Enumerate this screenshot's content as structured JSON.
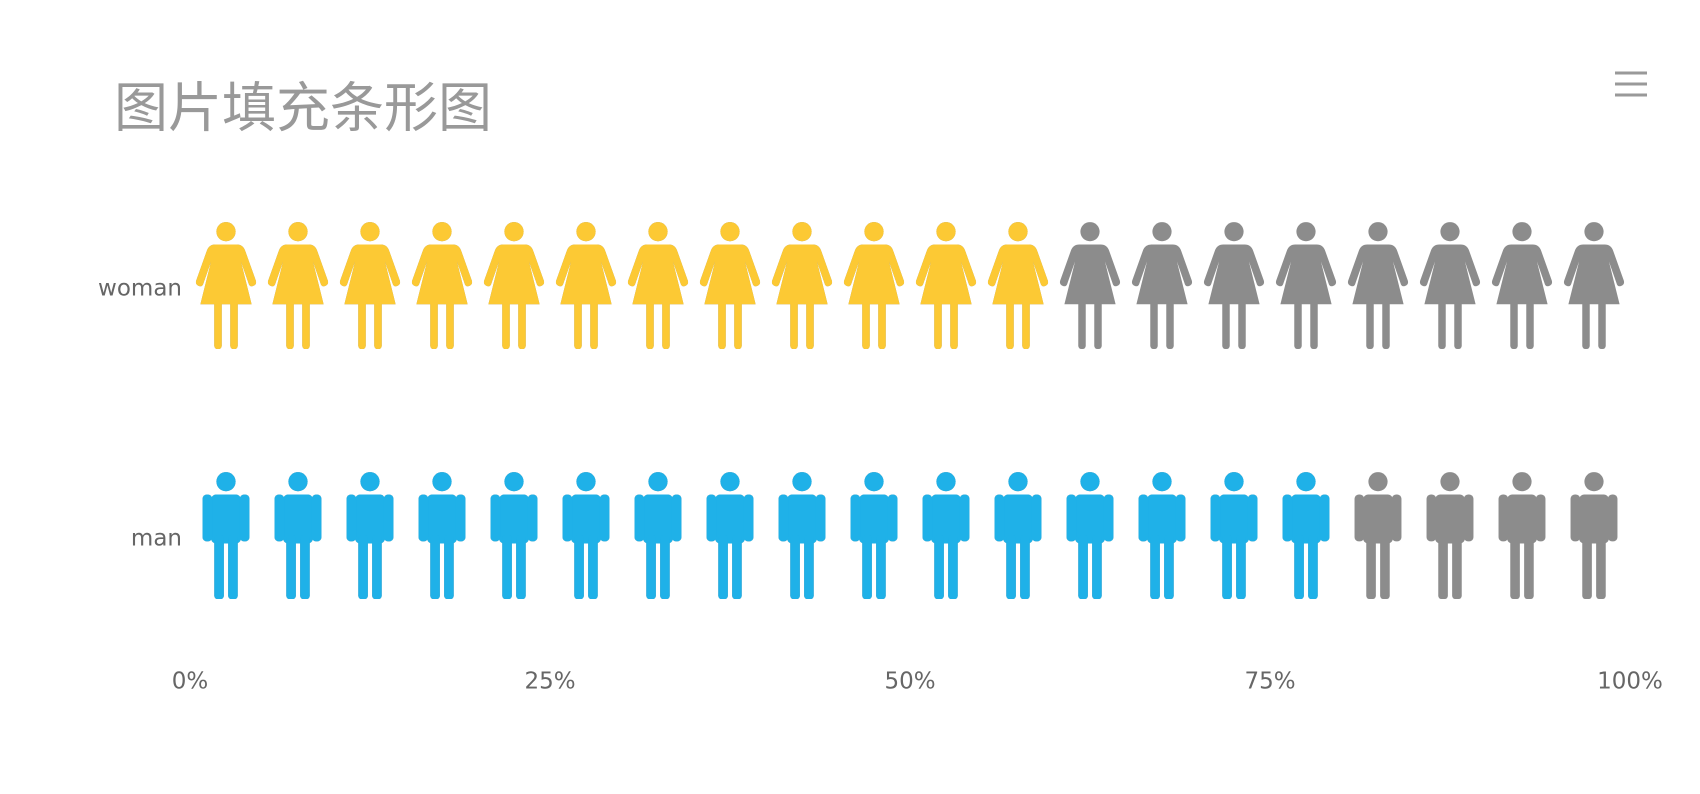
{
  "chart_data": {
    "type": "pictorialBar",
    "title": "图片填充条形图",
    "categories": [
      "woman",
      "man"
    ],
    "values": [
      60,
      80
    ],
    "colors": [
      "#fcc934",
      "#1fb1e8"
    ],
    "background_color": "#8c8c8c",
    "xlim": [
      0,
      100
    ],
    "xticks": [
      {
        "value": 0,
        "label": "0%"
      },
      {
        "value": 25,
        "label": "25%"
      },
      {
        "value": 50,
        "label": "50%"
      },
      {
        "value": 75,
        "label": "75%"
      },
      {
        "value": 100,
        "label": "100%"
      }
    ]
  }
}
